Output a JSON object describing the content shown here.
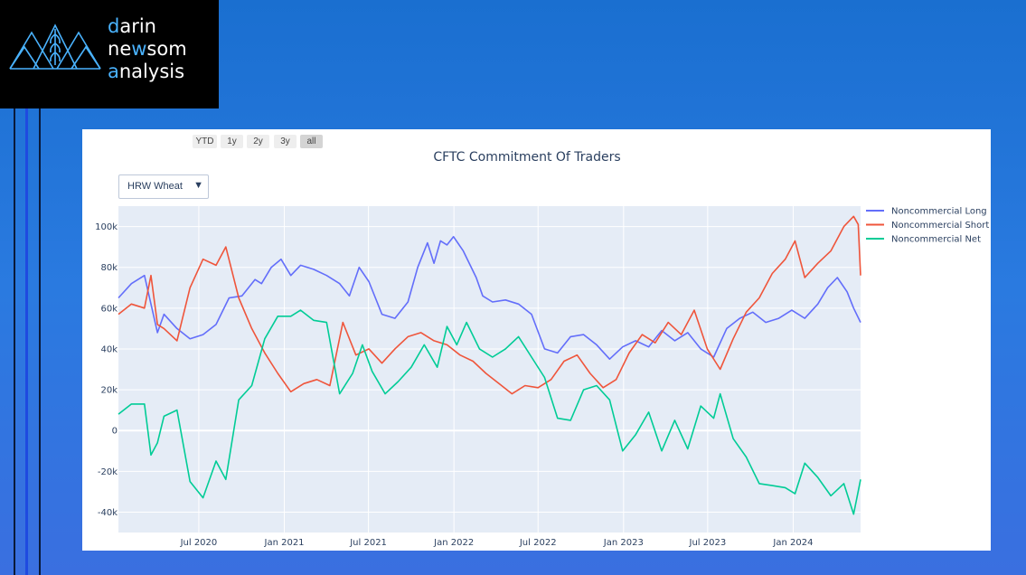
{
  "logo": {
    "line1": {
      "hl": "d",
      "rest": "arin"
    },
    "line2": {
      "pre": "n",
      "mid_pre": "e",
      "hl": "w",
      "rest": "som"
    },
    "line3": {
      "hl": "a",
      "rest": "nalysis"
    },
    "accent_color": "#4ab3ff",
    "icon": "mountains-wheat-icon"
  },
  "range_selector": {
    "buttons": [
      {
        "label": "YTD",
        "active": false
      },
      {
        "label": "1y",
        "active": false
      },
      {
        "label": "2y",
        "active": false
      },
      {
        "label": "3y",
        "active": false
      },
      {
        "label": "all",
        "active": true
      }
    ]
  },
  "dropdown": {
    "selected": "HRW Wheat",
    "arrow": "▼"
  },
  "chart_data": {
    "type": "line",
    "title": "CFTC Commitment Of Traders",
    "xlabel": "",
    "ylabel": "",
    "x_ticks": [
      "Jul 2020",
      "Jan 2021",
      "Jul 2021",
      "Jan 2022",
      "Jul 2022",
      "Jan 2023",
      "Jul 2023",
      "Jan 2024"
    ],
    "y_ticks": [
      "-40k",
      "-20k",
      "0",
      "20k",
      "40k",
      "60k",
      "80k",
      "100k"
    ],
    "ylim": [
      -50000,
      110000
    ],
    "x_range": [
      "2020-01-10",
      "2024-05-25"
    ],
    "grid": true,
    "legend_position": "top-right",
    "series": [
      {
        "name": "Noncommercial Long",
        "color": "#636efa",
        "points": [
          [
            "2020-01-10",
            65000
          ],
          [
            "2020-02-07",
            72000
          ],
          [
            "2020-03-06",
            76000
          ],
          [
            "2020-03-20",
            62000
          ],
          [
            "2020-04-03",
            48000
          ],
          [
            "2020-04-17",
            57000
          ],
          [
            "2020-05-15",
            50000
          ],
          [
            "2020-06-12",
            45000
          ],
          [
            "2020-07-10",
            47000
          ],
          [
            "2020-08-07",
            52000
          ],
          [
            "2020-09-04",
            65000
          ],
          [
            "2020-10-02",
            66000
          ],
          [
            "2020-10-30",
            74000
          ],
          [
            "2020-11-13",
            72000
          ],
          [
            "2020-12-04",
            80000
          ],
          [
            "2020-12-25",
            84000
          ],
          [
            "2021-01-15",
            76000
          ],
          [
            "2021-02-05",
            81000
          ],
          [
            "2021-03-05",
            79000
          ],
          [
            "2021-04-02",
            76000
          ],
          [
            "2021-04-30",
            72000
          ],
          [
            "2021-05-21",
            66000
          ],
          [
            "2021-06-11",
            80000
          ],
          [
            "2021-07-02",
            73000
          ],
          [
            "2021-07-30",
            57000
          ],
          [
            "2021-08-27",
            55000
          ],
          [
            "2021-09-24",
            63000
          ],
          [
            "2021-10-15",
            80000
          ],
          [
            "2021-11-05",
            92000
          ],
          [
            "2021-11-19",
            82000
          ],
          [
            "2021-12-03",
            93000
          ],
          [
            "2021-12-17",
            91000
          ],
          [
            "2021-12-31",
            95000
          ],
          [
            "2022-01-21",
            88000
          ],
          [
            "2022-02-18",
            75000
          ],
          [
            "2022-03-04",
            66000
          ],
          [
            "2022-03-25",
            63000
          ],
          [
            "2022-04-22",
            64000
          ],
          [
            "2022-05-20",
            62000
          ],
          [
            "2022-06-17",
            57000
          ],
          [
            "2022-07-15",
            40000
          ],
          [
            "2022-08-12",
            38000
          ],
          [
            "2022-09-09",
            46000
          ],
          [
            "2022-10-07",
            47000
          ],
          [
            "2022-11-04",
            42000
          ],
          [
            "2022-12-02",
            35000
          ],
          [
            "2022-12-30",
            41000
          ],
          [
            "2023-01-27",
            44000
          ],
          [
            "2023-02-24",
            41000
          ],
          [
            "2023-03-24",
            49000
          ],
          [
            "2023-04-21",
            44000
          ],
          [
            "2023-05-19",
            48000
          ],
          [
            "2023-06-16",
            40000
          ],
          [
            "2023-07-14",
            36000
          ],
          [
            "2023-08-11",
            50000
          ],
          [
            "2023-09-08",
            55000
          ],
          [
            "2023-10-06",
            58000
          ],
          [
            "2023-11-03",
            53000
          ],
          [
            "2023-12-01",
            55000
          ],
          [
            "2023-12-29",
            59000
          ],
          [
            "2024-01-26",
            55000
          ],
          [
            "2024-02-23",
            62000
          ],
          [
            "2024-03-15",
            70000
          ],
          [
            "2024-04-05",
            75000
          ],
          [
            "2024-04-26",
            68000
          ],
          [
            "2024-05-10",
            60000
          ],
          [
            "2024-05-25",
            53000
          ]
        ]
      },
      {
        "name": "Noncommercial Short",
        "color": "#ef553b",
        "points": [
          [
            "2020-01-10",
            57000
          ],
          [
            "2020-02-07",
            62000
          ],
          [
            "2020-03-06",
            60000
          ],
          [
            "2020-03-20",
            76000
          ],
          [
            "2020-04-03",
            52000
          ],
          [
            "2020-04-17",
            50000
          ],
          [
            "2020-05-15",
            44000
          ],
          [
            "2020-06-12",
            70000
          ],
          [
            "2020-07-10",
            84000
          ],
          [
            "2020-08-07",
            81000
          ],
          [
            "2020-08-28",
            90000
          ],
          [
            "2020-09-25",
            65000
          ],
          [
            "2020-10-23",
            50000
          ],
          [
            "2020-11-20",
            38000
          ],
          [
            "2020-12-18",
            28000
          ],
          [
            "2021-01-15",
            19000
          ],
          [
            "2021-02-12",
            23000
          ],
          [
            "2021-03-12",
            25000
          ],
          [
            "2021-04-09",
            22000
          ],
          [
            "2021-05-07",
            53000
          ],
          [
            "2021-06-04",
            37000
          ],
          [
            "2021-07-02",
            40000
          ],
          [
            "2021-07-30",
            33000
          ],
          [
            "2021-08-27",
            40000
          ],
          [
            "2021-09-24",
            46000
          ],
          [
            "2021-10-22",
            48000
          ],
          [
            "2021-11-19",
            44000
          ],
          [
            "2021-12-17",
            42000
          ],
          [
            "2022-01-14",
            37000
          ],
          [
            "2022-02-11",
            34000
          ],
          [
            "2022-03-11",
            28000
          ],
          [
            "2022-04-08",
            23000
          ],
          [
            "2022-05-06",
            18000
          ],
          [
            "2022-06-03",
            22000
          ],
          [
            "2022-07-01",
            21000
          ],
          [
            "2022-07-29",
            25000
          ],
          [
            "2022-08-26",
            34000
          ],
          [
            "2022-09-23",
            37000
          ],
          [
            "2022-10-21",
            28000
          ],
          [
            "2022-11-18",
            21000
          ],
          [
            "2022-12-16",
            25000
          ],
          [
            "2023-01-13",
            38000
          ],
          [
            "2023-02-10",
            47000
          ],
          [
            "2023-03-10",
            43000
          ],
          [
            "2023-04-07",
            53000
          ],
          [
            "2023-05-05",
            47000
          ],
          [
            "2023-06-02",
            59000
          ],
          [
            "2023-06-30",
            40000
          ],
          [
            "2023-07-28",
            30000
          ],
          [
            "2023-08-25",
            45000
          ],
          [
            "2023-09-22",
            58000
          ],
          [
            "2023-10-20",
            65000
          ],
          [
            "2023-11-17",
            77000
          ],
          [
            "2023-12-15",
            84000
          ],
          [
            "2024-01-05",
            93000
          ],
          [
            "2024-01-26",
            75000
          ],
          [
            "2024-02-23",
            82000
          ],
          [
            "2024-03-22",
            88000
          ],
          [
            "2024-04-19",
            100000
          ],
          [
            "2024-05-10",
            105000
          ],
          [
            "2024-05-20",
            101000
          ],
          [
            "2024-05-25",
            76000
          ]
        ]
      },
      {
        "name": "Noncommercial Net",
        "color": "#00cc96",
        "points": [
          [
            "2020-01-10",
            8000
          ],
          [
            "2020-02-07",
            13000
          ],
          [
            "2020-03-06",
            13000
          ],
          [
            "2020-03-20",
            -12000
          ],
          [
            "2020-04-03",
            -6000
          ],
          [
            "2020-04-17",
            7000
          ],
          [
            "2020-05-15",
            10000
          ],
          [
            "2020-06-12",
            -25000
          ],
          [
            "2020-07-10",
            -33000
          ],
          [
            "2020-08-07",
            -15000
          ],
          [
            "2020-08-28",
            -24000
          ],
          [
            "2020-09-25",
            15000
          ],
          [
            "2020-10-23",
            22000
          ],
          [
            "2020-11-20",
            45000
          ],
          [
            "2020-12-18",
            56000
          ],
          [
            "2021-01-15",
            56000
          ],
          [
            "2021-02-05",
            59000
          ],
          [
            "2021-03-05",
            54000
          ],
          [
            "2021-04-02",
            53000
          ],
          [
            "2021-04-30",
            18000
          ],
          [
            "2021-05-28",
            28000
          ],
          [
            "2021-06-18",
            42000
          ],
          [
            "2021-07-09",
            29000
          ],
          [
            "2021-08-06",
            18000
          ],
          [
            "2021-09-03",
            24000
          ],
          [
            "2021-10-01",
            31000
          ],
          [
            "2021-10-29",
            42000
          ],
          [
            "2021-11-26",
            31000
          ],
          [
            "2021-12-17",
            51000
          ],
          [
            "2022-01-07",
            42000
          ],
          [
            "2022-01-28",
            53000
          ],
          [
            "2022-02-25",
            40000
          ],
          [
            "2022-03-25",
            36000
          ],
          [
            "2022-04-22",
            40000
          ],
          [
            "2022-05-20",
            46000
          ],
          [
            "2022-06-17",
            36000
          ],
          [
            "2022-07-15",
            26000
          ],
          [
            "2022-08-12",
            6000
          ],
          [
            "2022-09-09",
            5000
          ],
          [
            "2022-10-07",
            20000
          ],
          [
            "2022-11-04",
            22000
          ],
          [
            "2022-12-02",
            15000
          ],
          [
            "2022-12-30",
            -10000
          ],
          [
            "2023-01-27",
            -2000
          ],
          [
            "2023-02-24",
            9000
          ],
          [
            "2023-03-24",
            -10000
          ],
          [
            "2023-04-21",
            5000
          ],
          [
            "2023-05-19",
            -9000
          ],
          [
            "2023-06-16",
            12000
          ],
          [
            "2023-07-14",
            6000
          ],
          [
            "2023-07-28",
            18000
          ],
          [
            "2023-08-25",
            -4000
          ],
          [
            "2023-09-22",
            -13000
          ],
          [
            "2023-10-20",
            -26000
          ],
          [
            "2023-11-17",
            -27000
          ],
          [
            "2023-12-15",
            -28000
          ],
          [
            "2024-01-05",
            -31000
          ],
          [
            "2024-01-26",
            -16000
          ],
          [
            "2024-02-23",
            -23000
          ],
          [
            "2024-03-22",
            -32000
          ],
          [
            "2024-04-19",
            -26000
          ],
          [
            "2024-05-10",
            -41000
          ],
          [
            "2024-05-25",
            -24000
          ]
        ]
      }
    ]
  }
}
